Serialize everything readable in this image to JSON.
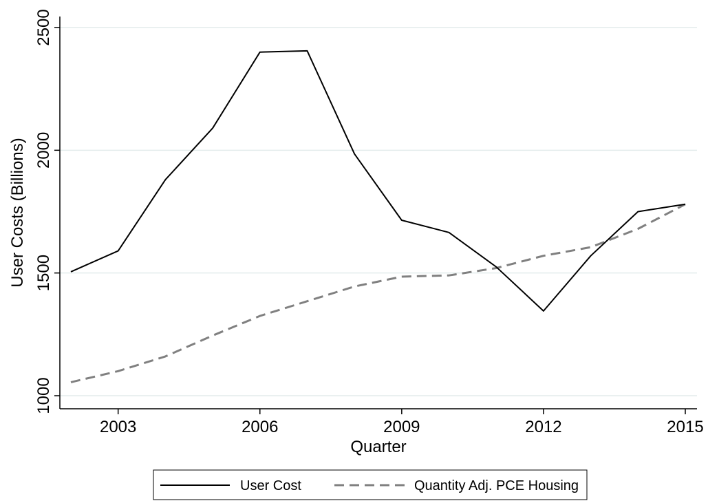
{
  "chart_data": {
    "type": "line",
    "title": "",
    "xlabel": "Quarter",
    "ylabel": "User Costs (Billions)",
    "xlim": [
      2002,
      2015
    ],
    "ylim": [
      1000,
      2500
    ],
    "x_ticks": [
      "2003",
      "2006",
      "2009",
      "2012",
      "2015"
    ],
    "y_ticks": [
      "1000",
      "1500",
      "2000",
      "2500"
    ],
    "grid": true,
    "legend_position": "bottom",
    "x": [
      2002,
      2003,
      2004,
      2005,
      2006,
      2007,
      2008,
      2009,
      2010,
      2011,
      2012,
      2013,
      2014,
      2015
    ],
    "series": [
      {
        "name": "User Cost",
        "color": "#000000",
        "style": "solid",
        "values": [
          1505,
          1590,
          1880,
          2090,
          2400,
          2405,
          1985,
          1715,
          1665,
          1525,
          1345,
          1570,
          1750,
          1780
        ]
      },
      {
        "name": "Quantity Adj. PCE Housing",
        "color": "#808080",
        "style": "dashed",
        "values": [
          1055,
          1100,
          1160,
          1245,
          1325,
          1385,
          1445,
          1485,
          1490,
          1520,
          1570,
          1605,
          1680,
          1780
        ]
      }
    ]
  }
}
